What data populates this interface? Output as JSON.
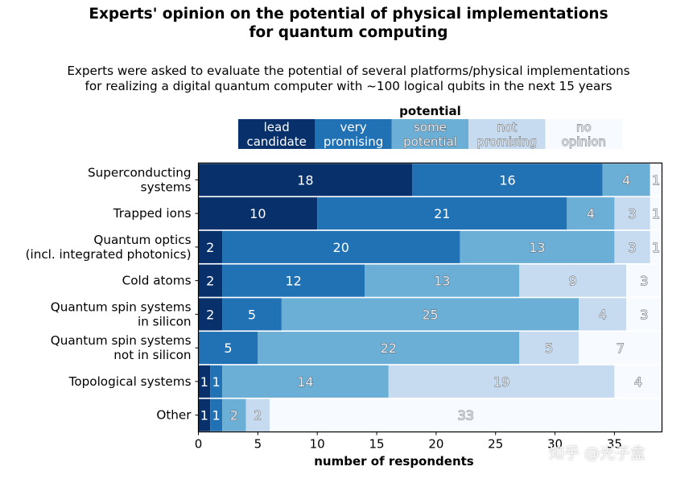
{
  "chart_data": {
    "type": "bar",
    "orientation": "horizontal",
    "stacked": true,
    "title": "Experts' opinion on the potential of physical implementations\nfor quantum computing",
    "subtitle": "Experts were asked to evaluate the potential of several platforms/physical implementations\nfor realizing a digital quantum computer with ~100 logical qubits in the next 15 years",
    "legend_title": "potential",
    "legend_placement": "top",
    "xlabel": "number of respondents",
    "ylabel": "",
    "xlim": [
      0,
      39
    ],
    "x_ticks": [
      0,
      5,
      10,
      15,
      20,
      25,
      30,
      35
    ],
    "grid": false,
    "categories": [
      "Superconducting\nsystems",
      "Trapped ions",
      "Quantum optics\n(incl. integrated photonics)",
      "Cold atoms",
      "Quantum spin systems\nin silicon",
      "Quantum spin systems\nnot in silicon",
      "Topological systems",
      "Other"
    ],
    "series": [
      {
        "name": "lead\ncandidate",
        "color": "#08306b",
        "values": [
          18,
          10,
          2,
          2,
          2,
          0,
          1,
          1
        ]
      },
      {
        "name": "very\npromising",
        "color": "#2171b5",
        "values": [
          16,
          21,
          20,
          12,
          5,
          5,
          1,
          1
        ]
      },
      {
        "name": "some\npotential",
        "color": "#6baed6",
        "values": [
          4,
          4,
          13,
          13,
          25,
          22,
          14,
          2
        ]
      },
      {
        "name": "not\npromising",
        "color": "#c6dbef",
        "values": [
          0,
          3,
          3,
          9,
          4,
          5,
          19,
          2
        ]
      },
      {
        "name": "no\nopinion",
        "color": "#f7fbff",
        "values": [
          1,
          1,
          1,
          3,
          3,
          7,
          4,
          33
        ]
      }
    ]
  },
  "watermark": "知乎 @光子盒"
}
